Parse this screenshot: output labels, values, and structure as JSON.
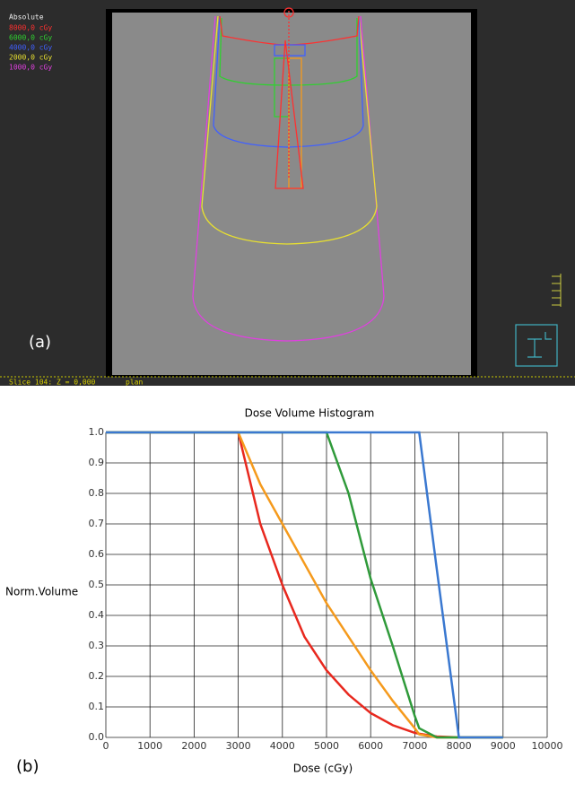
{
  "panel_a": {
    "legend_title": "Absolute",
    "levels": [
      {
        "label": "8000,0 cGy",
        "color": "#ff3030"
      },
      {
        "label": "6000,0 cGy",
        "color": "#30d030"
      },
      {
        "label": "4000,0 cGy",
        "color": "#4060ff"
      },
      {
        "label": "2000,0 cGy",
        "color": "#e8e030"
      },
      {
        "label": "1000,0 cGy",
        "color": "#e040e0"
      }
    ],
    "label": "(a)",
    "slice": "Slice 104: Z = 0,000",
    "plan": "plan"
  },
  "chart_data": {
    "type": "line",
    "title": "Dose Volume Histogram",
    "panel_label": "(b)",
    "x_label": "Dose (cGy)",
    "y_label": "Norm.Volume",
    "x": [
      0,
      1000,
      2000,
      3000,
      3500,
      4000,
      4500,
      5000,
      5500,
      6000,
      6500,
      7000,
      7100,
      7500,
      8000,
      9000
    ],
    "series": [
      {
        "color": "#e8281e",
        "values": [
          1,
          1,
          1,
          1,
          0.7,
          0.5,
          0.33,
          0.22,
          0.14,
          0.08,
          0.04,
          0.015,
          0.012,
          0.003,
          0,
          0
        ]
      },
      {
        "color": "#f59a1c",
        "values": [
          1,
          1,
          1,
          1,
          0.83,
          0.7,
          0.57,
          0.44,
          0.33,
          0.22,
          0.12,
          0.03,
          0.01,
          0,
          0,
          0
        ]
      },
      {
        "color": "#2f9a3a",
        "values": [
          1,
          1,
          1,
          1,
          1,
          1,
          1,
          1,
          0.8,
          0.52,
          0.3,
          0.07,
          0.03,
          0,
          0,
          0
        ]
      },
      {
        "color": "#3a78d0",
        "values": [
          1,
          1,
          1,
          1,
          1,
          1,
          1,
          1,
          1,
          1,
          1,
          1,
          1,
          0.55,
          0,
          0
        ]
      }
    ],
    "xlim": [
      0,
      10000
    ],
    "ylim": [
      0,
      1
    ],
    "xticks": [
      0,
      1000,
      2000,
      3000,
      4000,
      5000,
      6000,
      7000,
      8000,
      9000,
      10000
    ],
    "yticks": [
      {
        "value": 0,
        "label": "0.0"
      },
      0.1,
      0.2,
      0.3,
      0.4,
      0.5,
      0.6,
      0.7,
      0.8,
      0.9,
      {
        "value": 1,
        "label": "1.0"
      }
    ],
    "grid": true
  }
}
